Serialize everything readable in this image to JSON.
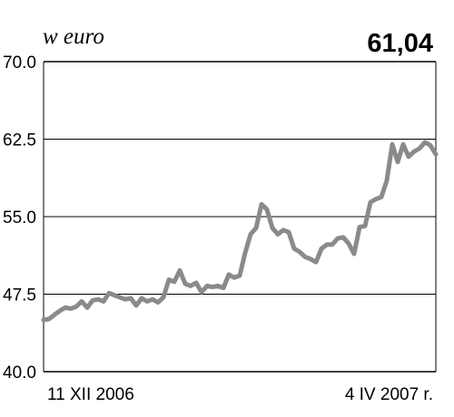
{
  "chart_data": {
    "type": "line",
    "unit_label": "w euro",
    "last_value_label": "61,04",
    "ylim": [
      40.0,
      70.0
    ],
    "yticks": [
      {
        "value": 70.0,
        "label": "70.0"
      },
      {
        "value": 62.5,
        "label": "62.5"
      },
      {
        "value": 55.0,
        "label": "55.0"
      },
      {
        "value": 47.5,
        "label": "47.5"
      },
      {
        "value": 40.0,
        "label": "40.0"
      }
    ],
    "grid": true,
    "x_start_label": "11 XII 2006",
    "x_end_label": "4 IV 2007 r.",
    "colors": {
      "line": "#8a8a8a",
      "grid": "#000000",
      "text": "#000000"
    },
    "series": [
      {
        "values": [
          45.0,
          45.1,
          45.5,
          45.9,
          46.2,
          46.1,
          46.3,
          46.8,
          46.2,
          46.9,
          47.0,
          46.8,
          47.6,
          47.4,
          47.2,
          47.0,
          47.1,
          46.4,
          47.1,
          46.8,
          47.0,
          46.7,
          47.2,
          48.9,
          48.7,
          49.8,
          48.5,
          48.3,
          48.6,
          47.7,
          48.3,
          48.2,
          48.3,
          48.1,
          49.4,
          49.1,
          49.3,
          51.5,
          53.3,
          53.9,
          56.2,
          55.7,
          53.9,
          53.3,
          53.7,
          53.5,
          51.9,
          51.6,
          51.1,
          50.9,
          50.6,
          51.9,
          52.3,
          52.3,
          52.9,
          53.0,
          52.4,
          51.4,
          54.0,
          54.1,
          56.4,
          56.7,
          56.9,
          58.5,
          62.0,
          60.3,
          62.0,
          60.8,
          61.3,
          61.6,
          62.2,
          61.9,
          61.04
        ]
      }
    ]
  }
}
